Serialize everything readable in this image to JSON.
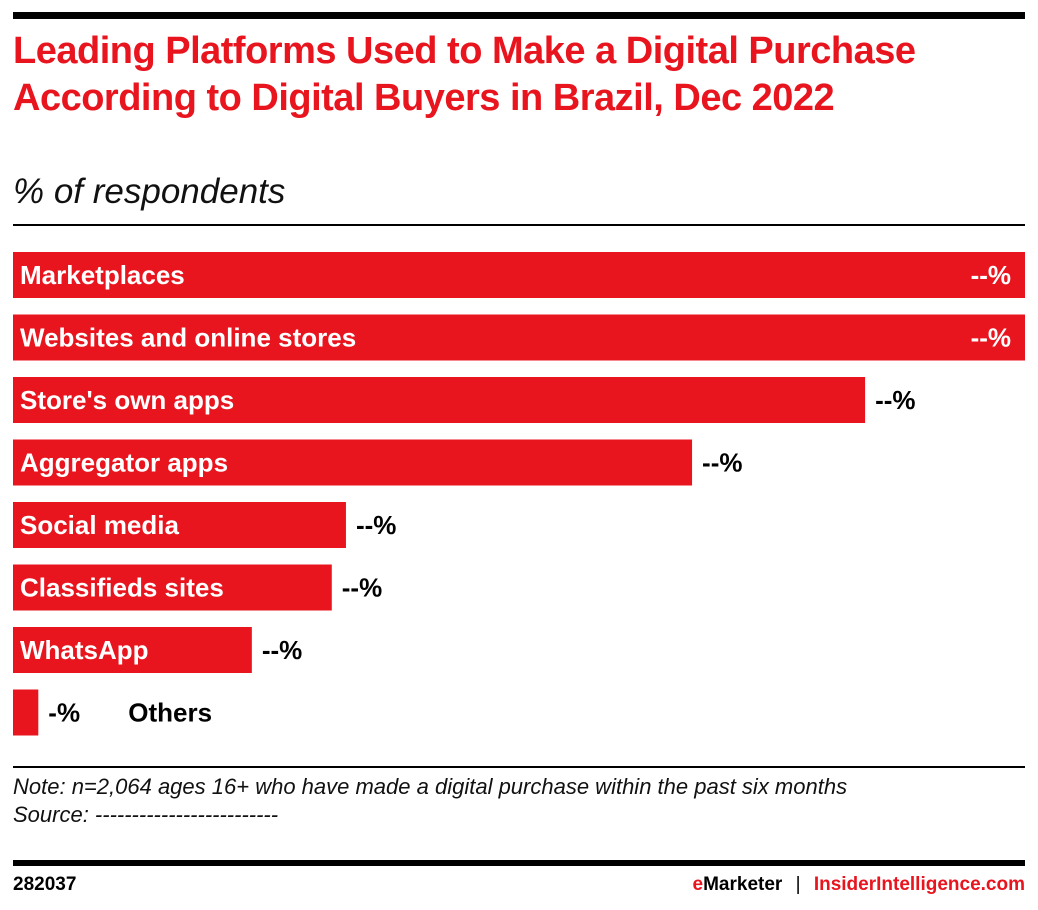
{
  "title": "Leading Platforms Used to Make a Digital Purchase According to Digital Buyers in Brazil, Dec 2022",
  "subtitle": "% of respondents",
  "chart_data": {
    "type": "bar",
    "orientation": "horizontal",
    "categories": [
      "Marketplaces",
      "Websites and online stores",
      "Store's own apps",
      "Aggregator apps",
      "Social media",
      "Classifieds sites",
      "WhatsApp",
      "Others"
    ],
    "values_relative_to_max": [
      1.0,
      1.0,
      0.842,
      0.671,
      0.329,
      0.315,
      0.236,
      0.025
    ],
    "data_labels": [
      "--%",
      "--%",
      "--%",
      "--%",
      "--%",
      "--%",
      "--%",
      "-%"
    ],
    "bar_color": "#e8141e",
    "grid": false,
    "legend": "none"
  },
  "note": "Note: n=2,064 ages 16+ who have made a digital purchase within the past six months",
  "source": "Source: -------------------------",
  "footer": {
    "id": "282037",
    "brand_e": "e",
    "brand_rest": "Marketer",
    "separator": "|",
    "site": "InsiderIntelligence.com"
  }
}
